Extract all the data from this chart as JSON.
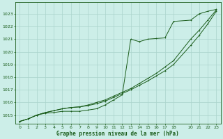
{
  "title": "Graphe pression niveau de la mer (hPa)",
  "bg_color": "#cceee8",
  "grid_color": "#aad4cc",
  "line_color": "#1a5c1a",
  "xlim": [
    -0.5,
    23.5
  ],
  "ylim": [
    1014.3,
    1023.9
  ],
  "yticks": [
    1015,
    1016,
    1017,
    1018,
    1019,
    1020,
    1021,
    1022,
    1023
  ],
  "xticks": [
    0,
    1,
    2,
    3,
    4,
    5,
    6,
    7,
    8,
    9,
    10,
    11,
    12,
    13,
    14,
    15,
    16,
    17,
    18,
    20,
    21,
    22,
    23
  ],
  "series_smooth1": {
    "x": [
      0,
      1,
      2,
      3,
      4,
      5,
      6,
      7,
      8,
      9,
      10,
      11,
      12,
      13,
      14,
      15,
      16,
      17,
      18,
      20,
      21,
      22,
      23
    ],
    "y": [
      1014.5,
      1014.7,
      1015.0,
      1015.2,
      1015.35,
      1015.5,
      1015.6,
      1015.65,
      1015.75,
      1015.9,
      1016.1,
      1016.4,
      1016.7,
      1017.0,
      1017.35,
      1017.7,
      1018.1,
      1018.5,
      1019.0,
      1020.5,
      1021.3,
      1022.2,
      1023.2
    ]
  },
  "series_smooth2": {
    "x": [
      0,
      1,
      2,
      3,
      4,
      5,
      6,
      7,
      8,
      9,
      10,
      11,
      12,
      13,
      14,
      15,
      16,
      17,
      18,
      20,
      21,
      22,
      23
    ],
    "y": [
      1014.5,
      1014.7,
      1015.0,
      1015.2,
      1015.35,
      1015.5,
      1015.6,
      1015.65,
      1015.8,
      1016.0,
      1016.2,
      1016.5,
      1016.8,
      1017.1,
      1017.5,
      1017.9,
      1018.3,
      1018.8,
      1019.3,
      1021.0,
      1021.7,
      1022.5,
      1023.3
    ]
  },
  "series_jagged": {
    "x": [
      0,
      1,
      2,
      3,
      4,
      5,
      6,
      7,
      8,
      9,
      10,
      11,
      12,
      13,
      14,
      15,
      16,
      17,
      18,
      20,
      21,
      22,
      23
    ],
    "y": [
      1014.5,
      1014.7,
      1015.0,
      1015.15,
      1015.2,
      1015.3,
      1015.3,
      1015.3,
      1015.4,
      1015.5,
      1015.8,
      1016.2,
      1016.6,
      1021.0,
      1020.8,
      1021.0,
      1021.05,
      1021.1,
      1022.4,
      1022.5,
      1023.0,
      1023.2,
      1023.35
    ]
  }
}
